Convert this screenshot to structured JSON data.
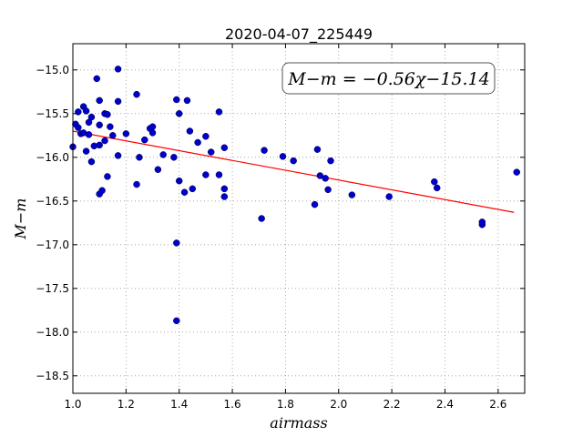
{
  "chart_data": {
    "type": "scatter",
    "title": "2020-04-07_225449",
    "xlabel": "airmass",
    "ylabel": "M−m",
    "xlim": [
      1.0,
      2.7
    ],
    "ylim": [
      -18.7,
      -14.7
    ],
    "y_inverted": true,
    "grid": true,
    "x_ticks": [
      1.0,
      1.2,
      1.4,
      1.6,
      1.8,
      2.0,
      2.2,
      2.4,
      2.6
    ],
    "x_tick_labels": [
      "1.0",
      "1.2",
      "1.4",
      "1.6",
      "1.8",
      "2.0",
      "2.2",
      "2.4",
      "2.6"
    ],
    "y_ticks": [
      -15.0,
      -15.5,
      -16.0,
      -16.5,
      -17.0,
      -17.5,
      -18.0,
      -18.5
    ],
    "y_tick_labels": [
      "−15.0",
      "−15.5",
      "−16.0",
      "−16.5",
      "−17.0",
      "−17.5",
      "−18.0",
      "−18.5"
    ],
    "annotation": "M−m = −0.56χ−15.14",
    "points_color": "#0000cc",
    "fit_color": "#ff0000",
    "fit": {
      "slope": -0.56,
      "intercept": -15.14,
      "x_range": [
        1.0,
        2.66
      ]
    },
    "series": [
      {
        "points": [
          [
            1.0,
            -15.88
          ],
          [
            1.01,
            -15.62
          ],
          [
            1.02,
            -15.66
          ],
          [
            1.02,
            -15.48
          ],
          [
            1.03,
            -15.73
          ],
          [
            1.04,
            -15.72
          ],
          [
            1.04,
            -15.42
          ],
          [
            1.05,
            -15.47
          ],
          [
            1.05,
            -15.93
          ],
          [
            1.06,
            -15.74
          ],
          [
            1.06,
            -15.6
          ],
          [
            1.07,
            -15.54
          ],
          [
            1.07,
            -16.05
          ],
          [
            1.08,
            -15.87
          ],
          [
            1.09,
            -15.1
          ],
          [
            1.1,
            -15.35
          ],
          [
            1.1,
            -15.63
          ],
          [
            1.1,
            -15.86
          ],
          [
            1.1,
            -16.42
          ],
          [
            1.11,
            -16.38
          ],
          [
            1.12,
            -15.5
          ],
          [
            1.12,
            -15.81
          ],
          [
            1.13,
            -15.51
          ],
          [
            1.13,
            -16.22
          ],
          [
            1.14,
            -15.65
          ],
          [
            1.15,
            -15.75
          ],
          [
            1.17,
            -14.99
          ],
          [
            1.17,
            -15.36
          ],
          [
            1.17,
            -15.98
          ],
          [
            1.2,
            -15.73
          ],
          [
            1.24,
            -15.28
          ],
          [
            1.24,
            -16.31
          ],
          [
            1.25,
            -16.0
          ],
          [
            1.27,
            -15.8
          ],
          [
            1.29,
            -15.67
          ],
          [
            1.3,
            -15.65
          ],
          [
            1.3,
            -15.72
          ],
          [
            1.32,
            -16.14
          ],
          [
            1.34,
            -15.97
          ],
          [
            1.38,
            -16.0
          ],
          [
            1.39,
            -15.34
          ],
          [
            1.39,
            -16.98
          ],
          [
            1.39,
            -17.87
          ],
          [
            1.4,
            -15.5
          ],
          [
            1.4,
            -16.27
          ],
          [
            1.42,
            -16.4
          ],
          [
            1.43,
            -15.35
          ],
          [
            1.44,
            -15.7
          ],
          [
            1.45,
            -16.36
          ],
          [
            1.47,
            -15.83
          ],
          [
            1.5,
            -15.76
          ],
          [
            1.5,
            -16.2
          ],
          [
            1.52,
            -15.94
          ],
          [
            1.55,
            -16.2
          ],
          [
            1.55,
            -15.48
          ],
          [
            1.57,
            -15.89
          ],
          [
            1.57,
            -16.36
          ],
          [
            1.57,
            -16.45
          ],
          [
            1.71,
            -16.7
          ],
          [
            1.72,
            -15.92
          ],
          [
            1.79,
            -15.99
          ],
          [
            1.83,
            -16.04
          ],
          [
            1.91,
            -16.54
          ],
          [
            1.92,
            -15.91
          ],
          [
            1.93,
            -16.21
          ],
          [
            1.95,
            -16.24
          ],
          [
            1.96,
            -16.37
          ],
          [
            1.97,
            -16.04
          ],
          [
            2.05,
            -16.43
          ],
          [
            2.19,
            -16.45
          ],
          [
            2.36,
            -16.28
          ],
          [
            2.37,
            -16.35
          ],
          [
            2.54,
            -16.77
          ],
          [
            2.54,
            -16.74
          ],
          [
            2.67,
            -16.17
          ]
        ]
      }
    ]
  }
}
